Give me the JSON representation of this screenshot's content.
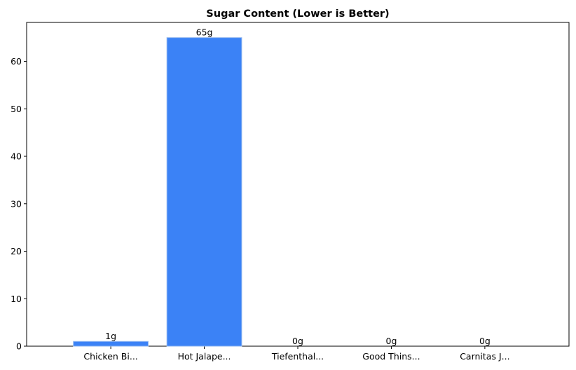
{
  "chart_data": {
    "type": "bar",
    "title": "Sugar Content (Lower is Better)",
    "xlabel": "",
    "ylabel": "",
    "categories": [
      "Chicken Bi...",
      "Hot Jalape...",
      "Tiefenthal...",
      "Good Thins...",
      "Carnitas J..."
    ],
    "values": [
      1,
      65,
      0,
      0,
      0
    ],
    "value_labels": [
      "1g",
      "65g",
      "0g",
      "0g",
      "0g"
    ],
    "ylim": [
      0,
      68.2
    ],
    "yticks": [
      0,
      10,
      20,
      30,
      40,
      50,
      60
    ],
    "bar_color": "#3b82f6",
    "bar_edge_color": "#93b8f0",
    "grid": false,
    "legend": "none"
  }
}
